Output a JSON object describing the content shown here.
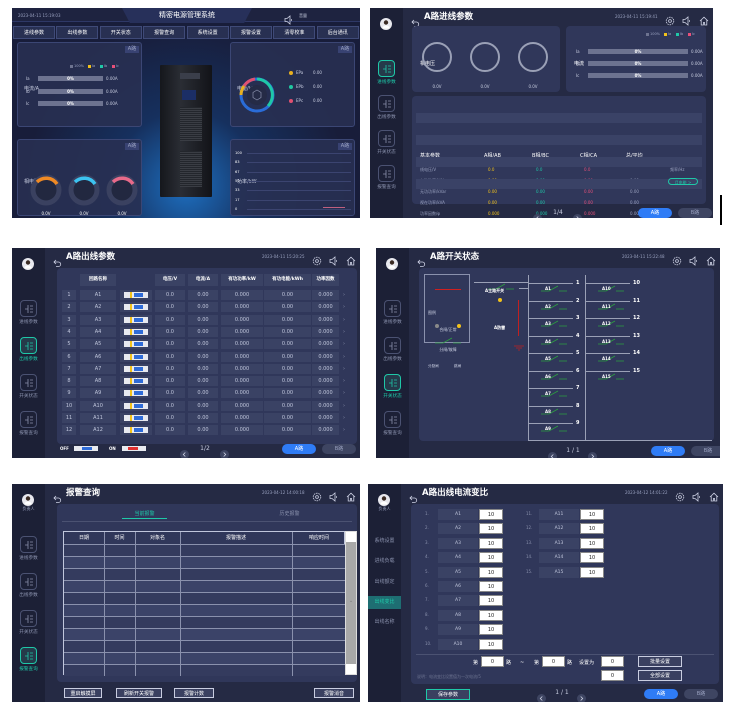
{
  "colors": {
    "accent": "#2f7cf6",
    "active_nav": "#1fc8a8",
    "ia": "#f2c21b",
    "ib": "#1fc8a8",
    "ic": "#e8507a",
    "panel_bg": "#252a44"
  },
  "nav": {
    "avatar_label": "负责人",
    "items": [
      {
        "label": "进线参数",
        "icon": "incoming-line-icon"
      },
      {
        "label": "出线参数",
        "icon": "outgoing-line-icon"
      },
      {
        "label": "开关状态",
        "icon": "switch-icon"
      },
      {
        "label": "报警查询",
        "icon": "alarm-icon"
      }
    ]
  },
  "dashboard": {
    "title": "精密电源管理系统",
    "datetime": "2023-04-11 15:19:03",
    "volume_label": "音量",
    "tabs": [
      "进线参数",
      "出线参数",
      "开关状态",
      "报警查询",
      "系统设置",
      "报警设置",
      "清零校准",
      "后台通讯"
    ],
    "current_card": {
      "title": "电流/A",
      "route": "A路",
      "legend": [
        "100%",
        "Ia",
        "Ib",
        "Ic"
      ],
      "rows": [
        {
          "label": "Ia",
          "percent": "0%",
          "value": "0.00A"
        },
        {
          "label": "Ib",
          "percent": "0%",
          "value": "0.00A"
        },
        {
          "label": "Ic",
          "percent": "0%",
          "value": "0.00A"
        }
      ]
    },
    "voltage_card": {
      "title": "相电压/V",
      "route": "A路",
      "gauges": [
        {
          "value": "0.0V",
          "label": "Ua",
          "color": "#f08a24"
        },
        {
          "value": "0.0V",
          "label": "Ub",
          "color": "#3cc3f0"
        },
        {
          "value": "0.0V",
          "label": "Uc",
          "color": "#e86a8a"
        }
      ]
    },
    "energy_card": {
      "title": "电能/kWh",
      "route": "A路",
      "items": [
        {
          "label": "EPa",
          "value": "0.00",
          "color": "#e8b020"
        },
        {
          "label": "EPb",
          "value": "0.00",
          "color": "#20c8a0"
        },
        {
          "label": "EPc",
          "value": "0.00",
          "color": "#e05070"
        }
      ]
    },
    "power_card": {
      "title": "功率/kW",
      "route": "A路",
      "y_ticks": [
        "100",
        "83",
        "67",
        "50",
        "33",
        "17",
        "0"
      ],
      "x_ticks": [
        "14:10:50",
        "15:10:50"
      ]
    }
  },
  "incoming": {
    "title": "A路进线参数",
    "datetime": "2023-04-11 15:19:41",
    "voltage_title": "相电压",
    "voltages": [
      {
        "value": "0.0V",
        "label": "Ua"
      },
      {
        "value": "0.0V",
        "label": "Ub"
      },
      {
        "value": "0.0V",
        "label": "Uc"
      }
    ],
    "current_title": "电流",
    "legend": [
      "100%",
      "Ia",
      "Ib",
      "Ic"
    ],
    "currents": [
      {
        "label": "Ia",
        "percent": "0%",
        "value": "0.00A"
      },
      {
        "label": "Ib",
        "percent": "0%",
        "value": "0.00A"
      },
      {
        "label": "Ic",
        "percent": "0%",
        "value": "0.00A"
      }
    ],
    "table": {
      "headers": [
        "基本参数",
        "A相/AB",
        "B相/BC",
        "C相/CA",
        "总/平均",
        ""
      ],
      "rows": [
        [
          "线电压/V",
          "0.0",
          "0.0",
          "0.0",
          "",
          "频率/Hz"
        ],
        [
          "有功功率/kW",
          "0.00",
          "0.00",
          "0.00",
          "0.00",
          "0"
        ],
        [
          "无功功率/kVar",
          "0.00",
          "0.00",
          "0.00",
          "0.00",
          ""
        ],
        [
          "视在功率/kVA",
          "0.00",
          "0.00",
          "0.00",
          "0.00",
          ""
        ],
        [
          "功率因数/φ",
          "0.000",
          "0.000",
          "0.000",
          "0.000",
          ""
        ],
        [
          "负载百分比/%",
          "0",
          "0",
          "0",
          "",
          ""
        ],
        [
          "有功电能/kWh",
          "0.00",
          "0.00",
          "0.00",
          "0.00",
          ""
        ],
        [
          "无功电能/kWh",
          "0.00",
          "0.00",
          "0.00",
          "0.00",
          ""
        ]
      ]
    },
    "month_energy_button": "月电能 >",
    "pager": "1/4",
    "route_a": "A路",
    "route_b": "B路"
  },
  "outgoing": {
    "title": "A路出线参数",
    "datetime": "2023-04-11 15:20:25",
    "headers": [
      "",
      "回路名称",
      "",
      "电压/V",
      "电流/A",
      "有功功率/kW",
      "有功电能/kWh",
      "功率因数"
    ],
    "rows": [
      [
        "1",
        "A1",
        "0.0",
        "0.00",
        "0.000",
        "0.00",
        "0.000"
      ],
      [
        "2",
        "A2",
        "0.0",
        "0.00",
        "0.000",
        "0.00",
        "0.000"
      ],
      [
        "3",
        "A3",
        "0.0",
        "0.00",
        "0.000",
        "0.00",
        "0.000"
      ],
      [
        "4",
        "A4",
        "0.0",
        "0.00",
        "0.000",
        "0.00",
        "0.000"
      ],
      [
        "5",
        "A5",
        "0.0",
        "0.00",
        "0.000",
        "0.00",
        "0.000"
      ],
      [
        "6",
        "A6",
        "0.0",
        "0.00",
        "0.000",
        "0.00",
        "0.000"
      ],
      [
        "7",
        "A7",
        "0.0",
        "0.00",
        "0.000",
        "0.00",
        "0.000"
      ],
      [
        "8",
        "A8",
        "0.0",
        "0.00",
        "0.000",
        "0.00",
        "0.000"
      ],
      [
        "9",
        "A9",
        "0.0",
        "0.00",
        "0.000",
        "0.00",
        "0.000"
      ],
      [
        "10",
        "A10",
        "0.0",
        "0.00",
        "0.000",
        "0.00",
        "0.000"
      ],
      [
        "11",
        "A11",
        "0.0",
        "0.00",
        "0.000",
        "0.00",
        "0.000"
      ],
      [
        "12",
        "A12",
        "0.0",
        "0.00",
        "0.000",
        "0.00",
        "0.000"
      ]
    ],
    "off_label": "OFF",
    "on_label": "ON",
    "pager": "1/2",
    "route_a": "A路",
    "route_b": "B路"
  },
  "switch": {
    "title": "A路开关状态",
    "datetime": "2023-04-11 15:22:48",
    "legend": {
      "title": "图例",
      "closed": "合闸/正常",
      "open": "分闸/故障",
      "shunt": "分励闸",
      "trip": "跳闸"
    },
    "main_switch": "A主路开关",
    "surge": "A防雷",
    "branches_left": [
      {
        "name": "A1",
        "num": "1"
      },
      {
        "name": "A2",
        "num": "2"
      },
      {
        "name": "A3",
        "num": "3"
      },
      {
        "name": "A4",
        "num": "4"
      },
      {
        "name": "A5",
        "num": "5"
      },
      {
        "name": "A6",
        "num": "6"
      },
      {
        "name": "A7",
        "num": "7"
      },
      {
        "name": "A8",
        "num": "8"
      },
      {
        "name": "A9",
        "num": "9"
      }
    ],
    "branches_right": [
      {
        "name": "A10",
        "num": "10"
      },
      {
        "name": "A11",
        "num": "11"
      },
      {
        "name": "A12",
        "num": "12"
      },
      {
        "name": "A13",
        "num": "13"
      },
      {
        "name": "A14",
        "num": "14"
      },
      {
        "name": "A15",
        "num": "15"
      }
    ],
    "pager": "1 / 1",
    "route_a": "A路",
    "route_b": "B路"
  },
  "alarm": {
    "title": "报警查询",
    "datetime": "2023-04-12 14:00:18",
    "tabs": [
      "当前报警",
      "历史报警"
    ],
    "headers": [
      "日期",
      "时间",
      "对象名",
      "报警描述",
      "响应时间"
    ],
    "buttons": [
      "重启触摸屏",
      "刷新开关报警",
      "报警计数",
      "报警消音"
    ]
  },
  "ratio": {
    "title": "A路出线电流变比",
    "datetime": "2023-04-12 14:01:22",
    "nav": [
      "系统设置",
      "进线负载",
      "出线额定",
      "出线变比",
      "出线名称"
    ],
    "left": [
      {
        "idx": "1.",
        "name": "A1",
        "value": "10"
      },
      {
        "idx": "2.",
        "name": "A2",
        "value": "10"
      },
      {
        "idx": "3.",
        "name": "A3",
        "value": "10"
      },
      {
        "idx": "4.",
        "name": "A4",
        "value": "10"
      },
      {
        "idx": "5.",
        "name": "A5",
        "value": "10"
      },
      {
        "idx": "6.",
        "name": "A6",
        "value": "10"
      },
      {
        "idx": "7.",
        "name": "A7",
        "value": "10"
      },
      {
        "idx": "8.",
        "name": "A8",
        "value": "10"
      },
      {
        "idx": "9.",
        "name": "A9",
        "value": "10"
      },
      {
        "idx": "10.",
        "name": "A10",
        "value": "10"
      }
    ],
    "right": [
      {
        "idx": "11.",
        "name": "A11",
        "value": "10"
      },
      {
        "idx": "12.",
        "name": "A12",
        "value": "10"
      },
      {
        "idx": "13.",
        "name": "A13",
        "value": "10"
      },
      {
        "idx": "14.",
        "name": "A14",
        "value": "10"
      },
      {
        "idx": "15.",
        "name": "A15",
        "value": "10"
      }
    ],
    "batch": {
      "prefix": "第",
      "from": "0",
      "route": "路",
      "tilde": "~",
      "to": "0",
      "set_to": "设置为",
      "value": "0",
      "button": "批量设置"
    },
    "note": "说明：电流变比设置值为一次电流/5",
    "all_value": "0",
    "all_button": "全部设置",
    "save_button": "保存参数",
    "pager": "1 / 1",
    "route_a": "A路",
    "route_b": "B路"
  }
}
